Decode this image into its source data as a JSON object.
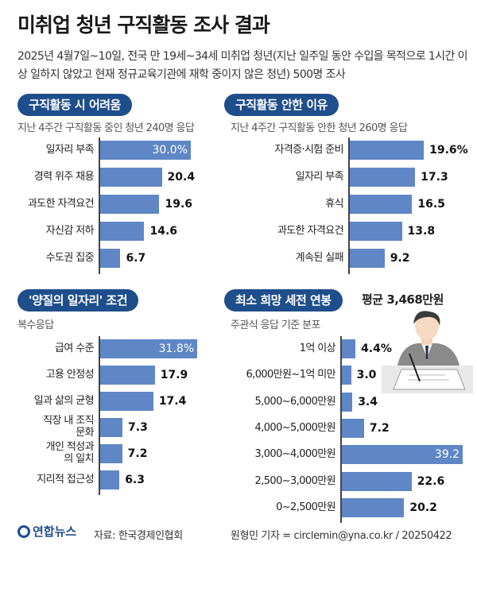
{
  "header": {
    "title": "미취업 청년 구직활동 조사 결과",
    "subtitle": "2025년 4월7일~10일, 전국 만 19세~34세 미취업 청년(지난 일주일 동안 수입을 목적으로 1시간 이상 일하지 않았고 현재 정규교육기관에 재학 중이지 않은 청년) 500명 조사"
  },
  "colors": {
    "pill": "#1f4e8c",
    "bar": "#5f87c6"
  },
  "chart_data": [
    {
      "type": "bar",
      "orientation": "horizontal",
      "title": "구직활동 시 어려움",
      "subtitle": "지난 4주간 구직활동 중인 청년 240명 응답",
      "unit": "%",
      "categories": [
        "일자리 부족",
        "경력 위주 채용",
        "과도한 자격요건",
        "자신감 저하",
        "수도권 집중"
      ],
      "values": [
        30.0,
        20.4,
        19.6,
        14.6,
        6.7
      ],
      "labels": [
        "30.0%",
        "20.4",
        "19.6",
        "14.6",
        "6.7"
      ]
    },
    {
      "type": "bar",
      "orientation": "horizontal",
      "title": "구직활동 안한 이유",
      "subtitle": "지난 4주간 구직활동 안한 청년 260명 응답",
      "unit": "%",
      "categories": [
        "자격증·시험 준비",
        "일자리 부족",
        "휴식",
        "과도한 자격요건",
        "계속된 실패"
      ],
      "values": [
        19.6,
        17.3,
        16.5,
        13.8,
        9.2
      ],
      "labels": [
        "19.6%",
        "17.3",
        "16.5",
        "13.8",
        "9.2"
      ]
    },
    {
      "type": "bar",
      "orientation": "horizontal",
      "title": "'양질의 일자리' 조건",
      "subtitle": "복수응답",
      "unit": "%",
      "categories": [
        "급여 수준",
        "고용 안정성",
        "일과 삶의 균형",
        "직장 내 조직문화",
        "개인 적성과의 일치",
        "지리적 접근성"
      ],
      "values": [
        31.8,
        17.9,
        17.4,
        7.3,
        7.2,
        6.3
      ],
      "labels": [
        "31.8%",
        "17.9",
        "17.4",
        "7.3",
        "7.2",
        "6.3"
      ]
    },
    {
      "type": "bar",
      "orientation": "horizontal",
      "title": "최소 희망 세전 연봉",
      "subtitle": "주관식 응답 기준 분포",
      "annotation": "평균 3,468만원",
      "unit": "%",
      "categories": [
        "1억 이상",
        "6,000만원~1억 미만",
        "5,000~6,000만원",
        "4,000~5,000만원",
        "3,000~4,000만원",
        "2,500~3,000만원",
        "0~2,500만원"
      ],
      "values": [
        4.4,
        3.0,
        3.4,
        7.2,
        39.2,
        22.6,
        20.2
      ],
      "labels": [
        "4.4%",
        "3.0",
        "3.4",
        "7.2",
        "39.2",
        "22.6",
        "20.2"
      ]
    }
  ],
  "footer": {
    "logo": "연합뉴스",
    "source": "자료: 한국경제인협회",
    "credit": "원형민 기자 = circlemin@yna.co.kr / 20250422"
  }
}
